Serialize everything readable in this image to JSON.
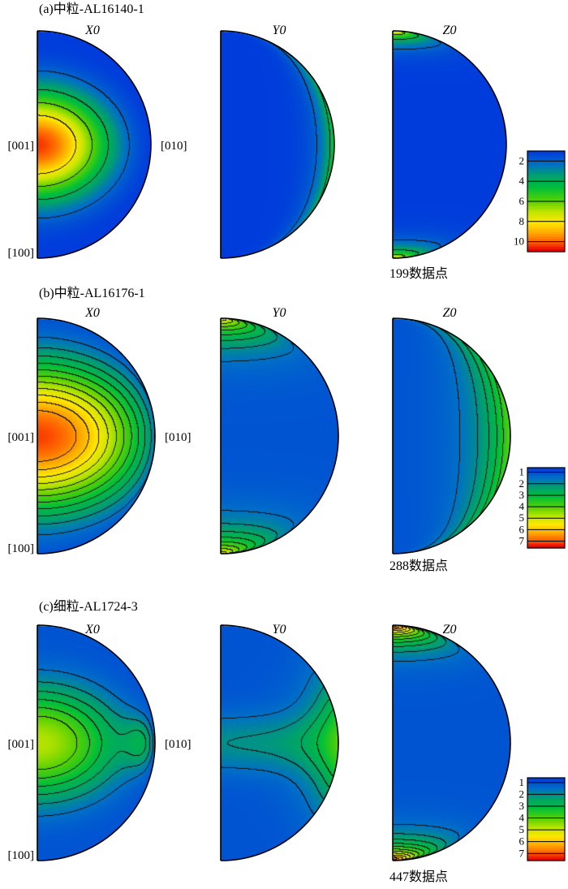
{
  "chart_data": [
    {
      "type": "heatmap",
      "title": "(a)中粒-AL16140-1",
      "plots": [
        {
          "title": "X0",
          "hot": [
            {
              "lat": 0,
              "lon": 0,
              "peak": 10.5,
              "rLat": 0.3,
              "rLon": 0.4
            }
          ],
          "contours": [
            2,
            4,
            6,
            8
          ]
        },
        {
          "title": "Y0",
          "hot": [
            {
              "lat": 0,
              "lon": 90,
              "peak": 5.2,
              "rLat": 0.6,
              "rLon": 0.3
            }
          ],
          "contours": [
            2,
            4
          ]
        },
        {
          "title": "Z0",
          "hot": [
            {
              "lat": 90,
              "lon": 0,
              "peak": 8.5,
              "rLat": 0.26,
              "rLon": 0.9
            },
            {
              "lat": -90,
              "lon": 0,
              "peak": 8.5,
              "rLat": 0.26,
              "rLon": 0.9
            }
          ],
          "contours": [
            2,
            4,
            6
          ]
        }
      ],
      "labels": {
        "center": "[001]",
        "right": "[010]",
        "bottom": "[100]"
      },
      "colorbar": {
        "ticks": [
          2,
          4,
          6,
          8,
          10
        ],
        "range": [
          1,
          11
        ]
      },
      "count": "199数据点"
    },
    {
      "type": "heatmap",
      "title": "(b)中粒-AL16176-1",
      "plots": [
        {
          "title": "X0",
          "hot": [
            {
              "lat": 0,
              "lon": 0,
              "peak": 7.2,
              "rLat": 0.4,
              "rLon": 0.62
            }
          ],
          "contours": [
            1.5,
            2,
            2.5,
            3,
            3.5,
            4,
            4.5,
            5,
            5.5,
            6,
            6.5
          ]
        },
        {
          "title": "Y0",
          "hot": [
            {
              "lat": 90,
              "lon": 0,
              "peak": 5.5,
              "rLat": 0.38,
              "rLon": 0.9
            },
            {
              "lat": -90,
              "lon": 0,
              "peak": 5.5,
              "rLat": 0.38,
              "rLon": 0.9
            }
          ],
          "contours": [
            1.5,
            2,
            2.5,
            3,
            3.5,
            4,
            4.5,
            5
          ]
        },
        {
          "title": "Z0",
          "hot": [
            {
              "lat": 0,
              "lon": 90,
              "peak": 4.2,
              "rLat": 0.7,
              "rLon": 0.45
            }
          ],
          "contours": [
            1.5,
            2,
            2.5,
            3,
            3.5
          ]
        }
      ],
      "labels": {
        "center": "[001]",
        "right": "[010]",
        "bottom": "[100]"
      },
      "colorbar": {
        "ticks": [
          1,
          2,
          3,
          4,
          5,
          6,
          7
        ],
        "range": [
          0.6,
          7.6
        ]
      },
      "count": "288数据点"
    },
    {
      "type": "heatmap",
      "title": "(c)细粒-AL1724-3",
      "plots": [
        {
          "title": "X0",
          "hot": [
            {
              "lat": 0,
              "lon": 0,
              "peak": 4.8,
              "rLat": 0.3,
              "rLon": 0.45
            },
            {
              "lat": 0,
              "lon": 62,
              "peak": 2.4,
              "rLat": 0.14,
              "rLon": 0.18
            }
          ],
          "contours": [
            1.5,
            2,
            2.5,
            3,
            3.5,
            4
          ]
        },
        {
          "title": "Y0",
          "hot": [
            {
              "lat": 0,
              "lon": 85,
              "peak": 3.6,
              "rLat": 0.32,
              "rLon": 0.4
            },
            {
              "lat": 0,
              "lon": 12,
              "peak": 2.0,
              "rLat": 0.16,
              "rLon": 0.8
            }
          ],
          "contours": [
            1.5,
            2,
            2.5,
            3
          ]
        },
        {
          "title": "Z0",
          "hot": [
            {
              "lat": 90,
              "lon": 0,
              "peak": 7.6,
              "rLat": 0.32,
              "rLon": 0.8
            },
            {
              "lat": -90,
              "lon": 0,
              "peak": 7.6,
              "rLat": 0.32,
              "rLon": 0.8
            }
          ],
          "contours": [
            1.5,
            2,
            2.5,
            3,
            3.5,
            4,
            4.5,
            5,
            5.5,
            6,
            6.5,
            7
          ]
        }
      ],
      "labels": {
        "center": "[001]",
        "right": "[010]",
        "bottom": "[100]"
      },
      "colorbar": {
        "ticks": [
          1,
          2,
          3,
          4,
          5,
          6,
          7
        ],
        "range": [
          0.6,
          7.6
        ]
      },
      "count": "447数据点"
    }
  ]
}
